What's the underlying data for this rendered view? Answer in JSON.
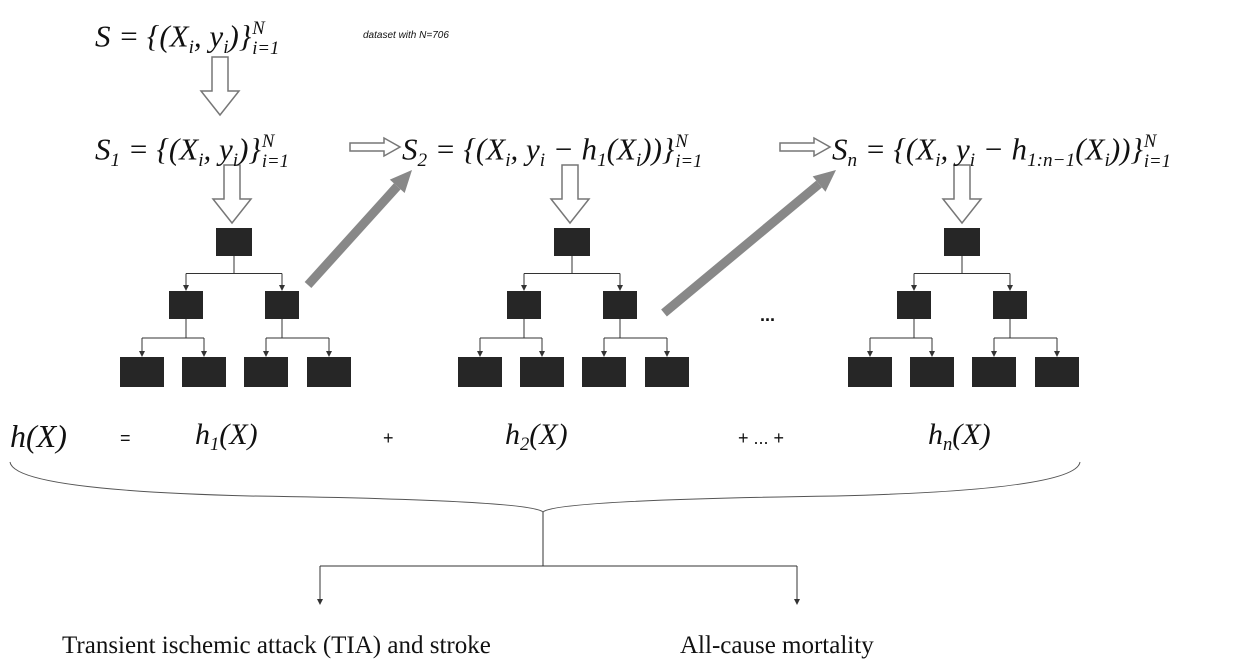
{
  "formulas": [
    {
      "parts": [
        {
          "t": "S = {(X"
        },
        {
          "sub": "i"
        },
        {
          "t": ", y"
        },
        {
          "sub": "i"
        },
        {
          "t": ")}"
        },
        {
          "sup": "N",
          "sub": "i=1"
        }
      ]
    },
    {
      "parts": [
        {
          "t": "S"
        },
        {
          "sub": "1"
        },
        {
          "t": " = {(X"
        },
        {
          "sub": "i"
        },
        {
          "t": ", y"
        },
        {
          "sub": "i"
        },
        {
          "t": ")}"
        },
        {
          "sup": "N",
          "sub": "i=1"
        }
      ]
    },
    {
      "parts": [
        {
          "t": "S"
        },
        {
          "sub": "2"
        },
        {
          "t": " = {(X"
        },
        {
          "sub": "i"
        },
        {
          "t": ", y"
        },
        {
          "sub": "i"
        },
        {
          "t": " − h"
        },
        {
          "sub": "1"
        },
        {
          "t": "(X"
        },
        {
          "sub": "i"
        },
        {
          "t": "))}"
        },
        {
          "sup": "N",
          "sub": "i=1"
        }
      ]
    },
    {
      "parts": [
        {
          "t": "S"
        },
        {
          "sub": "n"
        },
        {
          "t": " = {(X"
        },
        {
          "sub": "i"
        },
        {
          "t": ", y"
        },
        {
          "sub": "i"
        },
        {
          "t": " − h"
        },
        {
          "sub": "1:n−1"
        },
        {
          "t": "(X"
        },
        {
          "sub": "i"
        },
        {
          "t": "))}"
        },
        {
          "sup": "N",
          "sub": "i=1"
        }
      ]
    },
    {
      "parts": [
        {
          "t": "h(X)"
        }
      ]
    },
    {
      "parts": [
        {
          "t": "h"
        },
        {
          "sub": "1"
        },
        {
          "t": "(X)"
        }
      ]
    },
    {
      "parts": [
        {
          "t": "h"
        },
        {
          "sub": "2"
        },
        {
          "t": "(X)"
        }
      ]
    },
    {
      "parts": [
        {
          "t": "h"
        },
        {
          "sub": "n"
        },
        {
          "t": "(X)"
        }
      ]
    }
  ],
  "annotation": "dataset with N=706",
  "ellipsis": "...",
  "operators": [
    "=",
    "+",
    "+ ... +"
  ],
  "outcomes": [
    "Transient ischemic attack (TIA) and stroke",
    "All-cause mortality"
  ]
}
